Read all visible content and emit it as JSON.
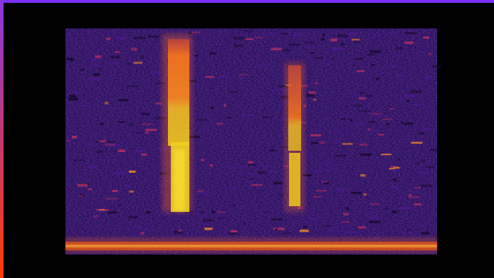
{
  "colors": {
    "background": "#000000",
    "edge_top": "#7b2ff7",
    "edge_left_top": "#8a35e0",
    "edge_left_bottom": "#ff3d00",
    "field_base": "#2a1470",
    "field_noise_low": "#15082e",
    "field_noise_mid": "#4a1a8c",
    "field_noise_hot": "#c03060",
    "streak_hot": "#ff8c1a",
    "streak_core": "#f0d020",
    "floor_band": "#ff6a10"
  },
  "image": {
    "subject": "spectrogram",
    "vertical_streaks": 2,
    "has_bottom_band": true
  }
}
